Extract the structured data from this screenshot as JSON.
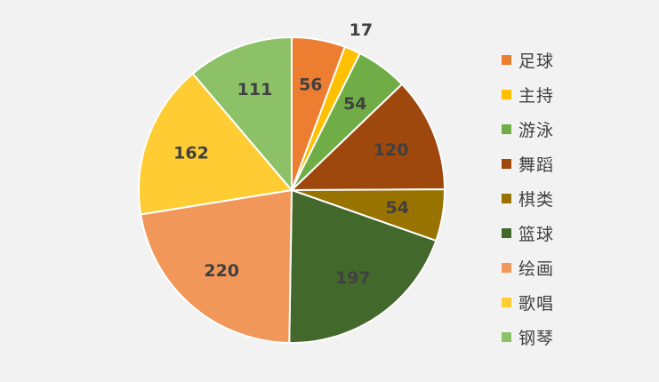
{
  "chart_data": {
    "type": "pie",
    "title": "",
    "legend_position": "right",
    "slices": [
      {
        "name": "足球",
        "value": 56,
        "label": "56",
        "color": "#ED7D31"
      },
      {
        "name": "主持",
        "value": 17,
        "label": "17",
        "color": "#FFC000"
      },
      {
        "name": "游泳",
        "value": 54,
        "label": "54",
        "color": "#70AD47"
      },
      {
        "name": "舞蹈",
        "value": 120,
        "label": "120",
        "color": "#9E480E"
      },
      {
        "name": "棋类",
        "value": 54,
        "label": "54",
        "color": "#997300"
      },
      {
        "name": "篮球",
        "value": 197,
        "label": "197",
        "color": "#43682B"
      },
      {
        "name": "绘画",
        "value": 220,
        "label": "220",
        "color": "#F1975A"
      },
      {
        "name": "歌唱",
        "value": 162,
        "label": "162",
        "color": "#FFCD33"
      },
      {
        "name": "钢琴",
        "value": 111,
        "label": "111",
        "color": "#8CC168"
      }
    ]
  }
}
